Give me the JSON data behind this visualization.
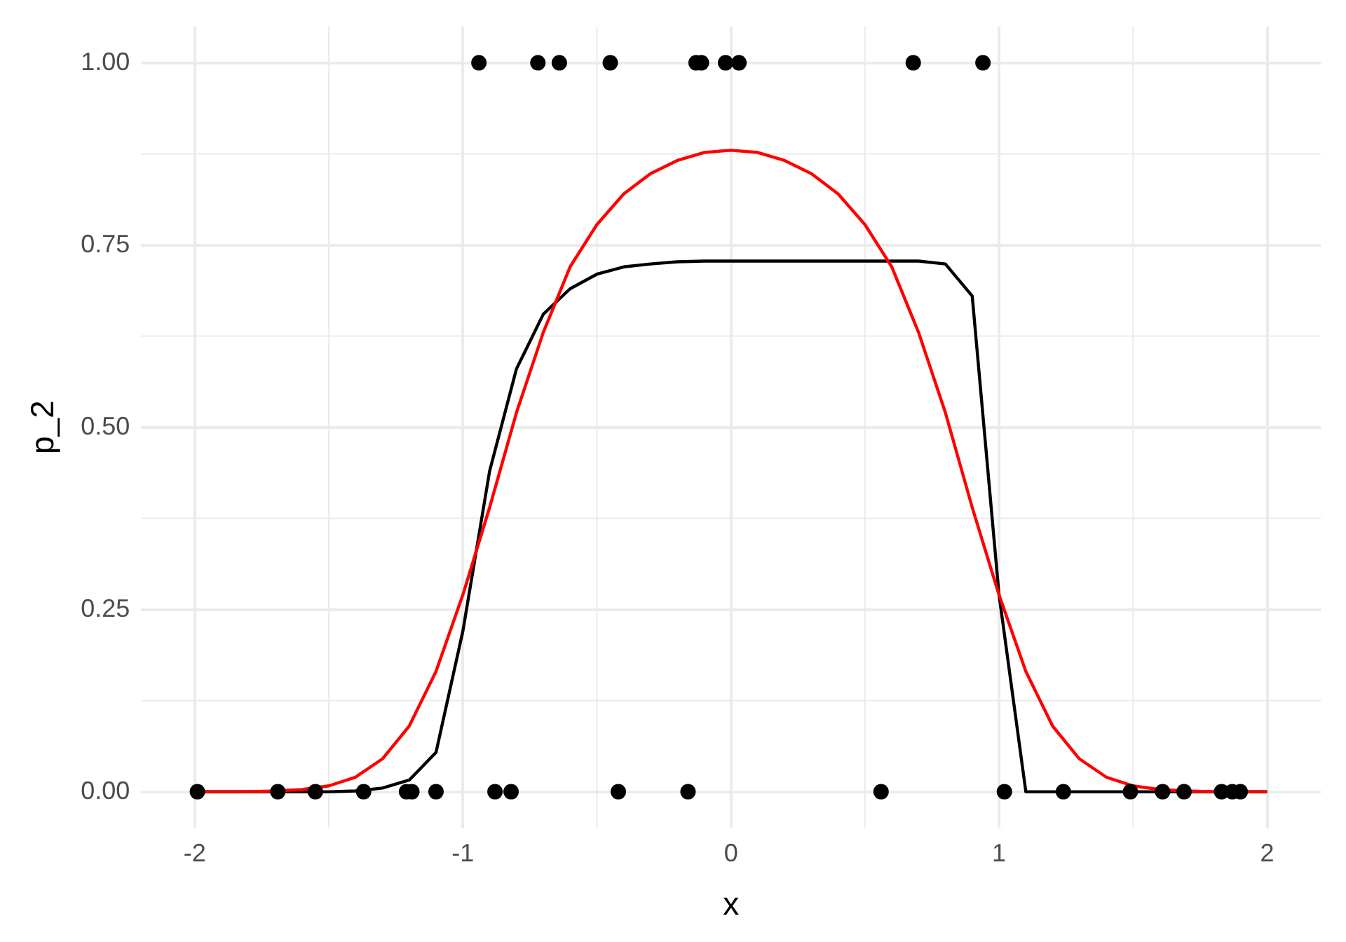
{
  "chart_data": {
    "type": "line",
    "xlabel": "x",
    "ylabel": "p_2",
    "xlim": [
      -2.2,
      2.2
    ],
    "ylim": [
      -0.05,
      1.05
    ],
    "xticks": [
      {
        "value": -2,
        "label": "-2"
      },
      {
        "value": -1,
        "label": "-1"
      },
      0,
      1,
      2
    ],
    "yticks": [
      {
        "value": 0,
        "label": "0.00"
      },
      {
        "value": 0.25,
        "label": "0.25"
      },
      {
        "value": 0.5,
        "label": "0.50"
      },
      {
        "value": 0.75,
        "label": "0.75"
      },
      {
        "value": 1,
        "label": "1.00"
      }
    ],
    "grid": true,
    "legend": false,
    "series": [
      {
        "type": "scatter",
        "color": "#000000",
        "marker": "circle",
        "x": [
          -0.94,
          -0.72,
          -0.64,
          -0.45,
          -0.13,
          -0.11,
          -0.02,
          0.03,
          0.68,
          0.94,
          -1.99,
          -1.69,
          -1.55,
          -1.37,
          -1.21,
          -1.19,
          -1.1,
          -0.88,
          -0.82,
          -0.42,
          -0.16,
          0.56,
          1.02,
          1.24,
          1.49,
          1.61,
          1.69,
          1.83,
          1.87,
          1.9
        ],
        "values": [
          1,
          1,
          1,
          1,
          1,
          1,
          1,
          1,
          1,
          1,
          0,
          0,
          0,
          0,
          0,
          0,
          0,
          0,
          0,
          0,
          0,
          0,
          0,
          0,
          0,
          0,
          0,
          0,
          0,
          0
        ]
      },
      {
        "type": "line",
        "color": "#000000",
        "marker": "none",
        "x": [
          -2,
          -1.9,
          -1.8,
          -1.7,
          -1.6,
          -1.5,
          -1.4,
          -1.3,
          -1.2,
          -1.1,
          -1,
          -0.9,
          -0.8,
          -0.7,
          -0.6,
          -0.5,
          -0.4,
          -0.3,
          -0.2,
          -0.1,
          0,
          0.1,
          0.2,
          0.3,
          0.4,
          0.5,
          0.6,
          0.7,
          0.8,
          0.9,
          1,
          1.1,
          1.2,
          1.3,
          1.4,
          1.5,
          1.6,
          1.7,
          1.8,
          1.9,
          2
        ],
        "values": [
          0,
          0,
          0,
          0,
          0,
          0,
          0.001,
          0.005,
          0.016,
          0.054,
          0.22,
          0.44,
          0.58,
          0.655,
          0.69,
          0.71,
          0.72,
          0.724,
          0.727,
          0.728,
          0.728,
          0.728,
          0.728,
          0.728,
          0.728,
          0.728,
          0.728,
          0.728,
          0.724,
          0.68,
          0.27,
          0,
          0,
          0,
          0,
          0,
          0,
          0,
          0,
          0,
          0
        ]
      },
      {
        "type": "line",
        "color": "#ff0000",
        "marker": "none",
        "x": [
          -2,
          -1.9,
          -1.8,
          -1.7,
          -1.6,
          -1.5,
          -1.4,
          -1.3,
          -1.2,
          -1.1,
          -1,
          -0.9,
          -0.8,
          -0.7,
          -0.6,
          -0.5,
          -0.4,
          -0.3,
          -0.2,
          -0.1,
          0,
          0.1,
          0.2,
          0.3,
          0.4,
          0.5,
          0.6,
          0.7,
          0.8,
          0.9,
          1,
          1.1,
          1.2,
          1.3,
          1.4,
          1.5,
          1.6,
          1.7,
          1.8,
          1.9,
          2
        ],
        "values": [
          0,
          0,
          0,
          0.001,
          0.003,
          0.008,
          0.02,
          0.045,
          0.09,
          0.165,
          0.27,
          0.39,
          0.52,
          0.63,
          0.72,
          0.778,
          0.82,
          0.848,
          0.866,
          0.877,
          0.88,
          0.877,
          0.866,
          0.848,
          0.82,
          0.778,
          0.72,
          0.63,
          0.52,
          0.39,
          0.27,
          0.165,
          0.09,
          0.045,
          0.02,
          0.008,
          0.003,
          0.001,
          0,
          0,
          0
        ]
      }
    ]
  }
}
